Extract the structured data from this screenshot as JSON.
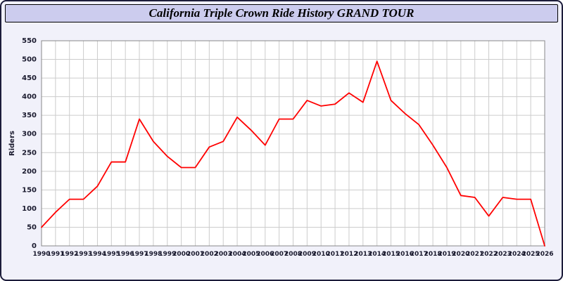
{
  "header": {
    "title": "California Triple Crown Ride History GRAND TOUR"
  },
  "colors": {
    "frame_background": "#f1f1fa",
    "title_bar_background": "#ccccee",
    "frame_border": "#1c1c3a",
    "grid": "#cccccc",
    "plot_border": "#888888",
    "axis_text": "#1a1a2e",
    "line": "#ff0000"
  },
  "chart_data": {
    "type": "line",
    "title": "California Triple Crown Ride History GRAND TOUR",
    "xlabel": "",
    "ylabel": "Riders",
    "ylim": [
      0,
      550
    ],
    "ytick_step": 50,
    "yticks": [
      0,
      50,
      100,
      150,
      200,
      250,
      300,
      350,
      400,
      450,
      500,
      550
    ],
    "grid": true,
    "legend": "none",
    "line_color": "#ff0000",
    "categories": [
      "1990",
      "1991",
      "1992",
      "1993",
      "1994",
      "1995",
      "1996",
      "1997",
      "1998",
      "1999",
      "2000",
      "2001",
      "2002",
      "2003",
      "2004",
      "2005",
      "2006",
      "2007",
      "2008",
      "2009",
      "2010",
      "2011",
      "2012",
      "2013",
      "2014",
      "2015",
      "2016",
      "2017",
      "2018",
      "2019",
      "2020",
      "2021",
      "2022",
      "2023",
      "2024",
      "2025",
      "2026"
    ],
    "values": [
      50,
      90,
      125,
      125,
      160,
      225,
      225,
      340,
      280,
      240,
      210,
      210,
      265,
      280,
      345,
      310,
      270,
      340,
      340,
      390,
      375,
      380,
      410,
      385,
      495,
      390,
      355,
      325,
      270,
      210,
      135,
      130,
      80,
      130,
      125,
      125,
      0
    ]
  }
}
